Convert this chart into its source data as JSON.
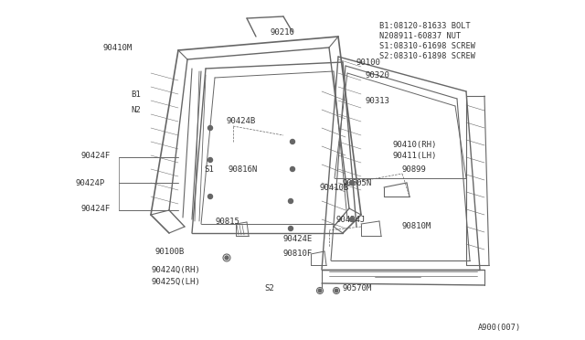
{
  "bg_color": "#ffffff",
  "diagram_color": "#666666",
  "text_color": "#333333",
  "fig_width": 6.4,
  "fig_height": 3.72,
  "dpi": 100,
  "legend_lines": [
    "B1:08120-81633 BOLT",
    "N208911-60837 NUT",
    "S1:08310-61698 SCREW",
    "S2:08310-61898 SCREW"
  ],
  "footer": "A900(007)"
}
